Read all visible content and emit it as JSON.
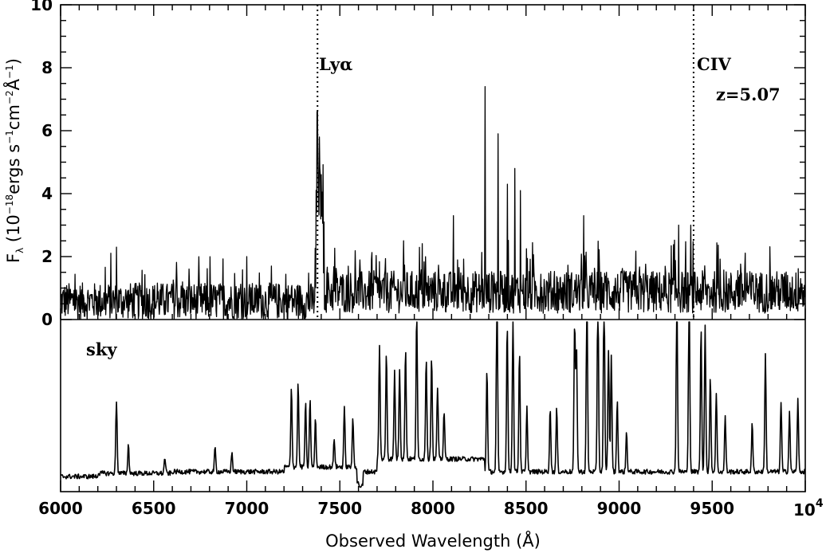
{
  "chart_data": [
    {
      "type": "line",
      "panel": "spectrum",
      "xlabel": "Observed Wavelength (Å)",
      "ylabel_main": "F",
      "ylabel_sub": "λ",
      "ylabel_rest": " (10",
      "ylabel_exp1": "−18",
      "ylabel_units": "ergs s",
      "ylabel_exp2": "−1",
      "ylabel_cm": "cm",
      "ylabel_exp3": "−2",
      "ylabel_ang": "Å",
      "ylabel_exp4": "−1",
      "ylabel_close": ")",
      "xlim": [
        6000,
        10000
      ],
      "ylim": [
        0,
        10
      ],
      "yticks": [
        "0",
        "2",
        "4",
        "6",
        "8",
        "10"
      ],
      "annotations": {
        "lya_label": "Lyα",
        "civ_label": "CIV",
        "redshift_label": "z=5.07"
      },
      "reference_lines": [
        {
          "name": "Lyα",
          "x": 7380
        },
        {
          "name": "CIV",
          "x": 9400
        }
      ],
      "noise_level": 0.9,
      "peaks": [
        {
          "x": 7378,
          "y": 6.6
        },
        {
          "x": 7390,
          "y": 5.8
        },
        {
          "x": 7400,
          "y": 4.6
        },
        {
          "x": 7415,
          "y": 3.1
        },
        {
          "x": 8280,
          "y": 7.4
        },
        {
          "x": 8350,
          "y": 5.9
        },
        {
          "x": 8400,
          "y": 4.3
        },
        {
          "x": 8440,
          "y": 4.8
        },
        {
          "x": 8470,
          "y": 4.1
        },
        {
          "x": 8110,
          "y": 3.3
        },
        {
          "x": 8810,
          "y": 3.3
        },
        {
          "x": 9320,
          "y": 3.0
        },
        {
          "x": 9385,
          "y": 3.0
        },
        {
          "x": 6300,
          "y": 2.3
        },
        {
          "x": 7000,
          "y": 2.0
        }
      ]
    },
    {
      "type": "line",
      "panel": "sky",
      "label": "sky",
      "xlim": [
        6000,
        10000
      ],
      "xticks": [
        "6000",
        "6500",
        "7000",
        "7500",
        "8000",
        "8500",
        "9000",
        "9500"
      ],
      "xtick_last_base": "10",
      "xtick_last_exp": "4",
      "baseline": 0.05,
      "lines": [
        {
          "x": 6300,
          "y": 0.46
        },
        {
          "x": 6364,
          "y": 0.18
        },
        {
          "x": 6560,
          "y": 0.1
        },
        {
          "x": 6830,
          "y": 0.15
        },
        {
          "x": 6920,
          "y": 0.12
        },
        {
          "x": 7240,
          "y": 0.5
        },
        {
          "x": 7276,
          "y": 0.53
        },
        {
          "x": 7316,
          "y": 0.4
        },
        {
          "x": 7340,
          "y": 0.43
        },
        {
          "x": 7369,
          "y": 0.3
        },
        {
          "x": 7470,
          "y": 0.18
        },
        {
          "x": 7524,
          "y": 0.37
        },
        {
          "x": 7570,
          "y": 0.3
        },
        {
          "x": 7713,
          "y": 0.71
        },
        {
          "x": 7750,
          "y": 0.67
        },
        {
          "x": 7794,
          "y": 0.55
        },
        {
          "x": 7821,
          "y": 0.57
        },
        {
          "x": 7853,
          "y": 0.7
        },
        {
          "x": 7913,
          "y": 0.94
        },
        {
          "x": 7964,
          "y": 0.64
        },
        {
          "x": 7993,
          "y": 0.65
        },
        {
          "x": 8025,
          "y": 0.45
        },
        {
          "x": 8060,
          "y": 0.3
        },
        {
          "x": 8290,
          "y": 0.65
        },
        {
          "x": 8344,
          "y": 1.2
        },
        {
          "x": 8399,
          "y": 0.93
        },
        {
          "x": 8430,
          "y": 0.98
        },
        {
          "x": 8465,
          "y": 0.76
        },
        {
          "x": 8505,
          "y": 0.4
        },
        {
          "x": 8630,
          "y": 0.4
        },
        {
          "x": 8665,
          "y": 0.4
        },
        {
          "x": 8761,
          "y": 0.93
        },
        {
          "x": 8771,
          "y": 0.8
        },
        {
          "x": 8827,
          "y": 1.2
        },
        {
          "x": 8886,
          "y": 1.2
        },
        {
          "x": 8919,
          "y": 1.2
        },
        {
          "x": 8943,
          "y": 0.77
        },
        {
          "x": 8958,
          "y": 0.72
        },
        {
          "x": 8990,
          "y": 0.45
        },
        {
          "x": 9040,
          "y": 0.25
        },
        {
          "x": 9310,
          "y": 1.2
        },
        {
          "x": 9376,
          "y": 1.2
        },
        {
          "x": 9440,
          "y": 0.9
        },
        {
          "x": 9462,
          "y": 0.93
        },
        {
          "x": 9490,
          "y": 0.6
        },
        {
          "x": 9522,
          "y": 0.5
        },
        {
          "x": 9570,
          "y": 0.35
        },
        {
          "x": 9715,
          "y": 0.3
        },
        {
          "x": 9786,
          "y": 0.73
        },
        {
          "x": 9870,
          "y": 0.44
        },
        {
          "x": 9915,
          "y": 0.38
        },
        {
          "x": 9960,
          "y": 0.45
        }
      ]
    }
  ]
}
